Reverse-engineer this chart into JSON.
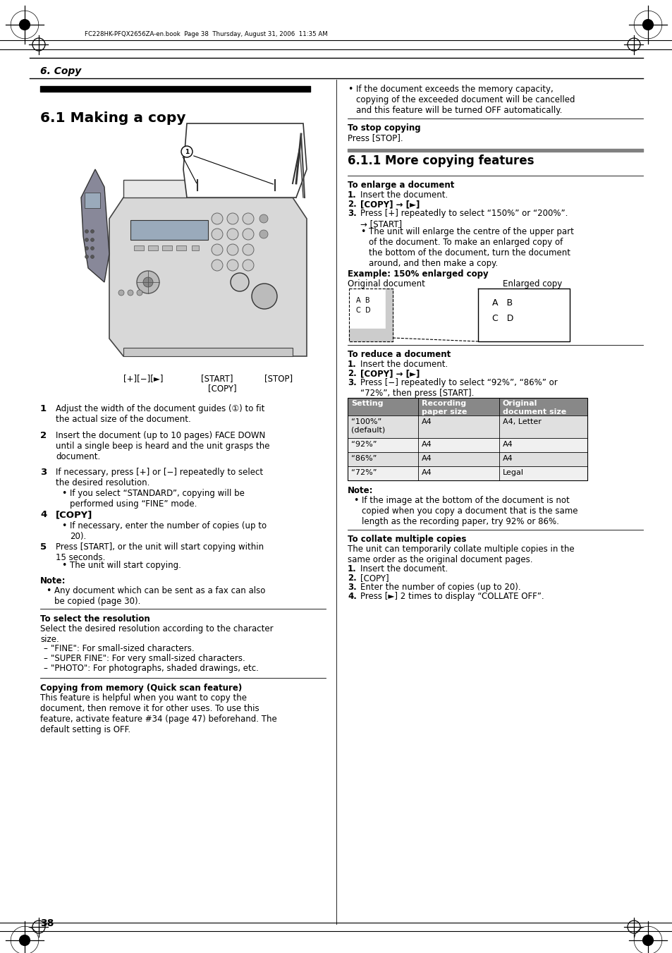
{
  "page_bg": "#ffffff",
  "header_file": "FC228HK-PFQX2656ZA-en.book  Page 38  Thursday, August 31, 2006  11:35 AM",
  "section_title": "6. Copy",
  "subsection_title": "6.1 Making a copy",
  "page_number": "38",
  "subsection_11": "6.1.1 More copying features"
}
